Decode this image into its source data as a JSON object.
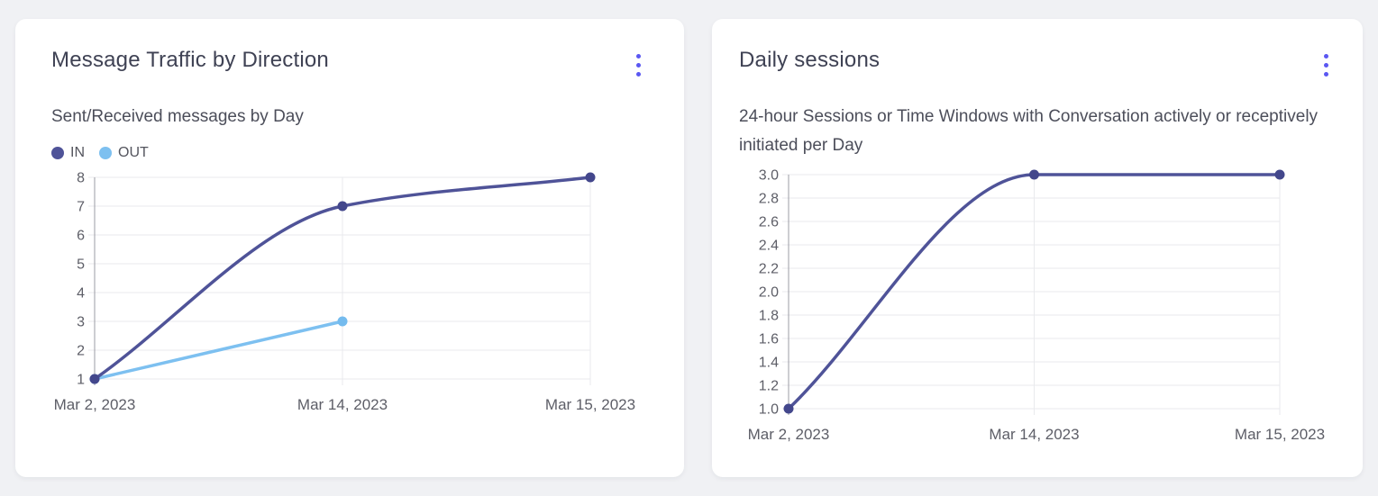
{
  "colors": {
    "page_bg": "#f0f1f4",
    "card_bg": "#ffffff",
    "accent": "#5a57f2",
    "title_text": "#3f4254",
    "subtitle_text": "#4c4e5a",
    "tick_text": "#5d5e67",
    "grid_line": "#e9eaed",
    "axis_line": "#9b9ca4"
  },
  "menu": {
    "icon": "kebab-vertical-icon"
  },
  "chart_data": [
    {
      "type": "line",
      "title": "Message Traffic by Direction",
      "subtitle": "Sent/Received messages by Day",
      "categories": [
        "Mar 2, 2023",
        "Mar 14, 2023",
        "Mar 15, 2023"
      ],
      "series": [
        {
          "name": "IN",
          "color": "#4f5398",
          "point_color": "#43478c",
          "values": [
            1,
            7,
            8
          ]
        },
        {
          "name": "OUT",
          "color": "#7dc0f0",
          "point_color": "#74bbee",
          "values": [
            1,
            3,
            null
          ]
        }
      ],
      "ylim": [
        1,
        8
      ],
      "ytick_step": 1,
      "ytick_decimals": 0,
      "xlabel": "",
      "ylabel": "",
      "grid": true,
      "curve": "smooth",
      "legend_position": "top-left"
    },
    {
      "type": "line",
      "title": "Daily sessions",
      "subtitle": "24-hour Sessions or Time Windows with Conversation actively or receptively initiated per Day",
      "categories": [
        "Mar 2, 2023",
        "Mar 14, 2023",
        "Mar 15, 2023"
      ],
      "series": [
        {
          "name": "",
          "color": "#4f5398",
          "point_color": "#43478c",
          "values": [
            1,
            3,
            3
          ]
        }
      ],
      "ylim": [
        1,
        3
      ],
      "ytick_step": 0.2,
      "ytick_decimals": 1,
      "xlabel": "",
      "ylabel": "",
      "grid": true,
      "curve": "smooth",
      "legend_position": "none"
    }
  ]
}
